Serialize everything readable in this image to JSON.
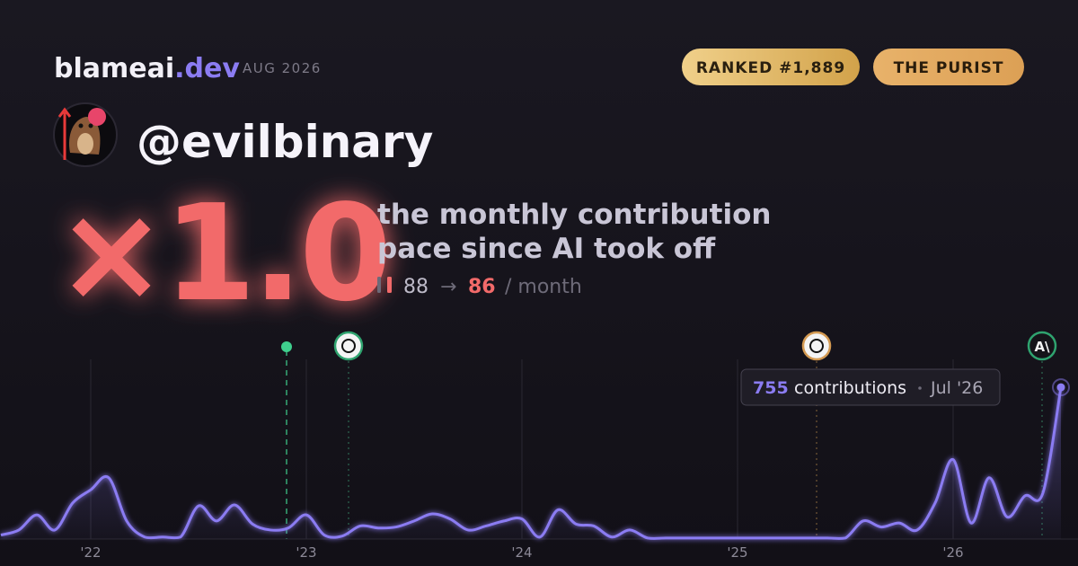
{
  "header": {
    "brand": "blameai",
    "brand_tld": ".dev",
    "period": "AUG 2026",
    "badges": [
      "RANKED #1,889",
      "THE PURIST"
    ]
  },
  "user": {
    "handle": "@evilbinary"
  },
  "headline": {
    "multiplier": "×1.0",
    "description_lines": [
      "the monthly contribution",
      "pace since AI took off"
    ],
    "pace_before": 88,
    "arrow": "→",
    "pace_after": 86,
    "unit": "/ month"
  },
  "chart_data": {
    "type": "area",
    "categories": [
      null,
      null,
      null,
      null,
      null,
      "'22",
      null,
      null,
      null,
      null,
      null,
      null,
      null,
      null,
      null,
      null,
      null,
      "'23",
      null,
      null,
      null,
      null,
      null,
      null,
      null,
      null,
      null,
      null,
      null,
      "'24",
      null,
      null,
      null,
      null,
      null,
      null,
      null,
      null,
      null,
      null,
      null,
      "'25",
      null,
      null,
      null,
      null,
      null,
      null,
      null,
      null,
      null,
      null,
      null,
      "'26",
      null,
      null,
      null,
      null,
      null,
      null
    ],
    "values": [
      20,
      45,
      120,
      45,
      180,
      245,
      305,
      90,
      10,
      10,
      10,
      165,
      90,
      170,
      75,
      45,
      55,
      120,
      20,
      15,
      65,
      55,
      60,
      90,
      125,
      100,
      45,
      65,
      90,
      100,
      10,
      145,
      75,
      65,
      10,
      45,
      5,
      5,
      5,
      5,
      5,
      5,
      5,
      5,
      5,
      5,
      5,
      5,
      90,
      60,
      80,
      45,
      180,
      395,
      80,
      305,
      110,
      215,
      230,
      755
    ],
    "color": "#8b7cf2",
    "ylim": [
      0,
      800
    ],
    "grid": true,
    "tooltip": {
      "label": "contributions",
      "date": "Jul '26"
    }
  }
}
